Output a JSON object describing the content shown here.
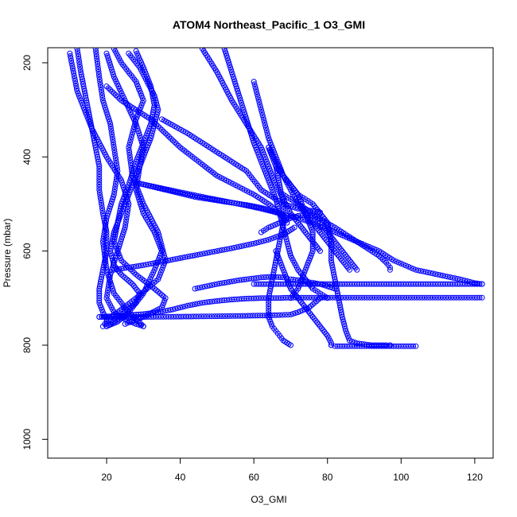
{
  "chart_data": {
    "type": "scatter",
    "title": "ATOM4 Northeast_Pacific_1 O3_GMI",
    "xlabel": "O3_GMI",
    "ylabel": "Pressure (mbar)",
    "xlim": [
      4,
      125
    ],
    "ylim": [
      1040,
      168
    ],
    "y_reversed": true,
    "x_ticks": [
      20,
      40,
      60,
      80,
      100,
      120
    ],
    "y_ticks": [
      200,
      400,
      600,
      800,
      1000
    ],
    "grid": false,
    "legend": "none",
    "marker": "open-circle",
    "connected_with_lines": true,
    "colors": {
      "series": "#0000ff",
      "axes": "#000000"
    },
    "series": [
      {
        "x": [
          12,
          13,
          14,
          15,
          16,
          17,
          18,
          18,
          19,
          20,
          20,
          19,
          18,
          18,
          19,
          20,
          20
        ],
        "y": [
          170,
          220,
          260,
          300,
          340,
          380,
          420,
          470,
          520,
          560,
          600,
          640,
          680,
          710,
          730,
          745,
          760
        ]
      },
      {
        "x": [
          10,
          12,
          16,
          20,
          24,
          26,
          25,
          23,
          21,
          20,
          22,
          25,
          28,
          30
        ],
        "y": [
          180,
          260,
          340,
          400,
          450,
          500,
          550,
          600,
          650,
          700,
          730,
          745,
          755,
          760
        ]
      },
      {
        "x": [
          17,
          18,
          19,
          21,
          22,
          23,
          22,
          20,
          19,
          20,
          22,
          26,
          30
        ],
        "y": [
          170,
          230,
          280,
          330,
          380,
          430,
          480,
          530,
          580,
          640,
          690,
          730,
          760
        ]
      },
      {
        "x": [
          22,
          24,
          28,
          30,
          28,
          26,
          27,
          30,
          34,
          36,
          34,
          28,
          23,
          20,
          19
        ],
        "y": [
          170,
          200,
          240,
          280,
          320,
          380,
          440,
          500,
          560,
          620,
          660,
          700,
          730,
          750,
          760
        ]
      },
      {
        "x": [
          20,
          22,
          25,
          28,
          30,
          29,
          28,
          30,
          33,
          35,
          33,
          30,
          26,
          23,
          20
        ],
        "y": [
          180,
          230,
          280,
          330,
          380,
          420,
          470,
          520,
          560,
          600,
          640,
          690,
          730,
          750,
          760
        ]
      },
      {
        "x": [
          28,
          30,
          32,
          33,
          32,
          30,
          28,
          26,
          24,
          23,
          22,
          24,
          28,
          33,
          36,
          35,
          30,
          25
        ],
        "y": [
          175,
          210,
          250,
          290,
          330,
          370,
          410,
          460,
          500,
          540,
          580,
          620,
          650,
          680,
          700,
          720,
          740,
          755
        ]
      },
      {
        "x": [
          26,
          29,
          31,
          33,
          34,
          33,
          32,
          30,
          28,
          26,
          24,
          22,
          21,
          22,
          24,
          27,
          29,
          28,
          25,
          23,
          21,
          20
        ],
        "y": [
          180,
          210,
          240,
          270,
          300,
          330,
          360,
          400,
          440,
          480,
          520,
          560,
          600,
          630,
          650,
          670,
          690,
          710,
          730,
          745,
          755,
          760
        ]
      },
      {
        "x": [
          18,
          30,
          45,
          55,
          63,
          67,
          70,
          72,
          75,
          78
        ],
        "y": [
          740,
          740,
          739,
          738,
          737,
          736,
          735,
          730,
          720,
          700
        ]
      },
      {
        "x": [
          18,
          22,
          26,
          30,
          34,
          38,
          42,
          46,
          50,
          54,
          58,
          62,
          66,
          70,
          75,
          80,
          85,
          90,
          95,
          100,
          105,
          110,
          115,
          120,
          122
        ],
        "y": [
          740,
          738,
          736,
          734,
          730,
          724,
          716,
          710,
          706,
          703,
          701,
          700,
          700,
          699,
          699,
          699,
          699,
          699,
          699,
          699,
          699,
          699,
          699,
          699,
          699
        ]
      },
      {
        "x": [
          35,
          42,
          50,
          58,
          62,
          66,
          68,
          70,
          72,
          74,
          76,
          78
        ],
        "y": [
          320,
          350,
          390,
          430,
          470,
          490,
          500,
          505,
          510,
          512,
          515,
          518
        ]
      },
      {
        "x": [
          20,
          24,
          28,
          32,
          36,
          40,
          45,
          50,
          55,
          60,
          64,
          67,
          69
        ],
        "y": [
          250,
          280,
          300,
          320,
          350,
          380,
          410,
          440,
          460,
          480,
          500,
          520,
          540
        ]
      },
      {
        "x": [
          28,
          34,
          40,
          48,
          56,
          62,
          66,
          68,
          70,
          72,
          74,
          76,
          78,
          82,
          88,
          94,
          98,
          104,
          110,
          116,
          120,
          122
        ],
        "y": [
          455,
          465,
          475,
          488,
          500,
          510,
          518,
          522,
          526,
          530,
          535,
          540,
          548,
          560,
          580,
          600,
          620,
          640,
          650,
          660,
          668,
          670
        ]
      },
      {
        "x": [
          22,
          30,
          38,
          46,
          54,
          60,
          64,
          66,
          68,
          69,
          70,
          71
        ],
        "y": [
          640,
          630,
          618,
          606,
          594,
          584,
          576,
          570,
          565,
          560,
          555,
          550
        ]
      },
      {
        "x": [
          28,
          36,
          44,
          52,
          58,
          62,
          65,
          67,
          68,
          69
        ],
        "y": [
          455,
          470,
          485,
          495,
          502,
          508,
          515,
          520,
          525,
          530
        ]
      },
      {
        "x": [
          62,
          64,
          67,
          70,
          72,
          74,
          76,
          78,
          82,
          86,
          90,
          94,
          96,
          97,
          97
        ],
        "y": [
          560,
          550,
          540,
          530,
          525,
          522,
          525,
          532,
          550,
          570,
          590,
          610,
          625,
          635,
          640
        ]
      },
      {
        "x": [
          44,
          50,
          56,
          60,
          62,
          64,
          66,
          68,
          69,
          70,
          72,
          75,
          78,
          80,
          82
        ],
        "y": [
          680,
          670,
          662,
          658,
          656,
          655,
          655,
          656,
          658,
          660,
          662,
          666,
          670,
          675,
          680
        ]
      },
      {
        "x": [
          60,
          64,
          68,
          72,
          76,
          80,
          84,
          88,
          92,
          96,
          100,
          104,
          108,
          112,
          116,
          120,
          122
        ],
        "y": [
          670,
          670,
          670,
          670,
          670,
          670,
          670,
          670,
          670,
          670,
          670,
          670,
          670,
          670,
          670,
          670,
          670
        ]
      },
      {
        "x": [
          60,
          62,
          64,
          66,
          68,
          70,
          72,
          74,
          76,
          78,
          80,
          82,
          84,
          86
        ],
        "y": [
          240,
          300,
          360,
          400,
          440,
          470,
          500,
          520,
          540,
          560,
          580,
          600,
          620,
          640
        ]
      },
      {
        "x": [
          46,
          50,
          54,
          58,
          62,
          64,
          66,
          68,
          70,
          72,
          74,
          76,
          78
        ],
        "y": [
          170,
          220,
          280,
          330,
          380,
          420,
          460,
          490,
          520,
          540,
          560,
          580,
          600
        ]
      },
      {
        "x": [
          52,
          54,
          56,
          58,
          60,
          62,
          64,
          66,
          67,
          68,
          69,
          70,
          72,
          74,
          76,
          78,
          80
        ],
        "y": [
          170,
          220,
          270,
          320,
          370,
          410,
          450,
          490,
          520,
          550,
          580,
          610,
          640,
          660,
          680,
          690,
          700
        ]
      },
      {
        "x": [
          64,
          66,
          67,
          68,
          68,
          67,
          66,
          65,
          64,
          64,
          65,
          66,
          67,
          68,
          69,
          70
        ],
        "y": [
          380,
          420,
          460,
          500,
          540,
          580,
          620,
          660,
          700,
          740,
          760,
          770,
          780,
          790,
          795,
          800
        ]
      },
      {
        "x": [
          66,
          67,
          68,
          69,
          70,
          72,
          74,
          76,
          78,
          80,
          81,
          81
        ],
        "y": [
          600,
          620,
          640,
          660,
          680,
          700,
          720,
          740,
          760,
          780,
          795,
          800
        ]
      },
      {
        "x": [
          81,
          82,
          84,
          86,
          88,
          90,
          92,
          94,
          96,
          98,
          100,
          102,
          104
        ],
        "y": [
          800,
          802,
          802,
          802,
          802,
          802,
          802,
          802,
          802,
          802,
          802,
          802,
          802
        ]
      },
      {
        "x": [
          64,
          66,
          68,
          70,
          72,
          74,
          76,
          78,
          80,
          81,
          81,
          82,
          83,
          84,
          85,
          86,
          88,
          90,
          92,
          94,
          96,
          97,
          97
        ],
        "y": [
          380,
          410,
          440,
          460,
          480,
          490,
          500,
          520,
          540,
          580,
          620,
          660,
          700,
          740,
          770,
          790,
          796,
          798,
          800,
          800,
          800,
          800,
          800
        ]
      },
      {
        "x": [
          66,
          68,
          70,
          72,
          73,
          74,
          75,
          76,
          76,
          76,
          75,
          74,
          73,
          72,
          71,
          70
        ],
        "y": [
          420,
          440,
          460,
          480,
          500,
          520,
          540,
          560,
          580,
          600,
          620,
          640,
          660,
          680,
          690,
          700
        ]
      },
      {
        "x": [
          68,
          70,
          72,
          74,
          76,
          78,
          80,
          82,
          84,
          86,
          88
        ],
        "y": [
          480,
          490,
          500,
          510,
          520,
          540,
          560,
          580,
          600,
          620,
          640
        ]
      }
    ]
  }
}
